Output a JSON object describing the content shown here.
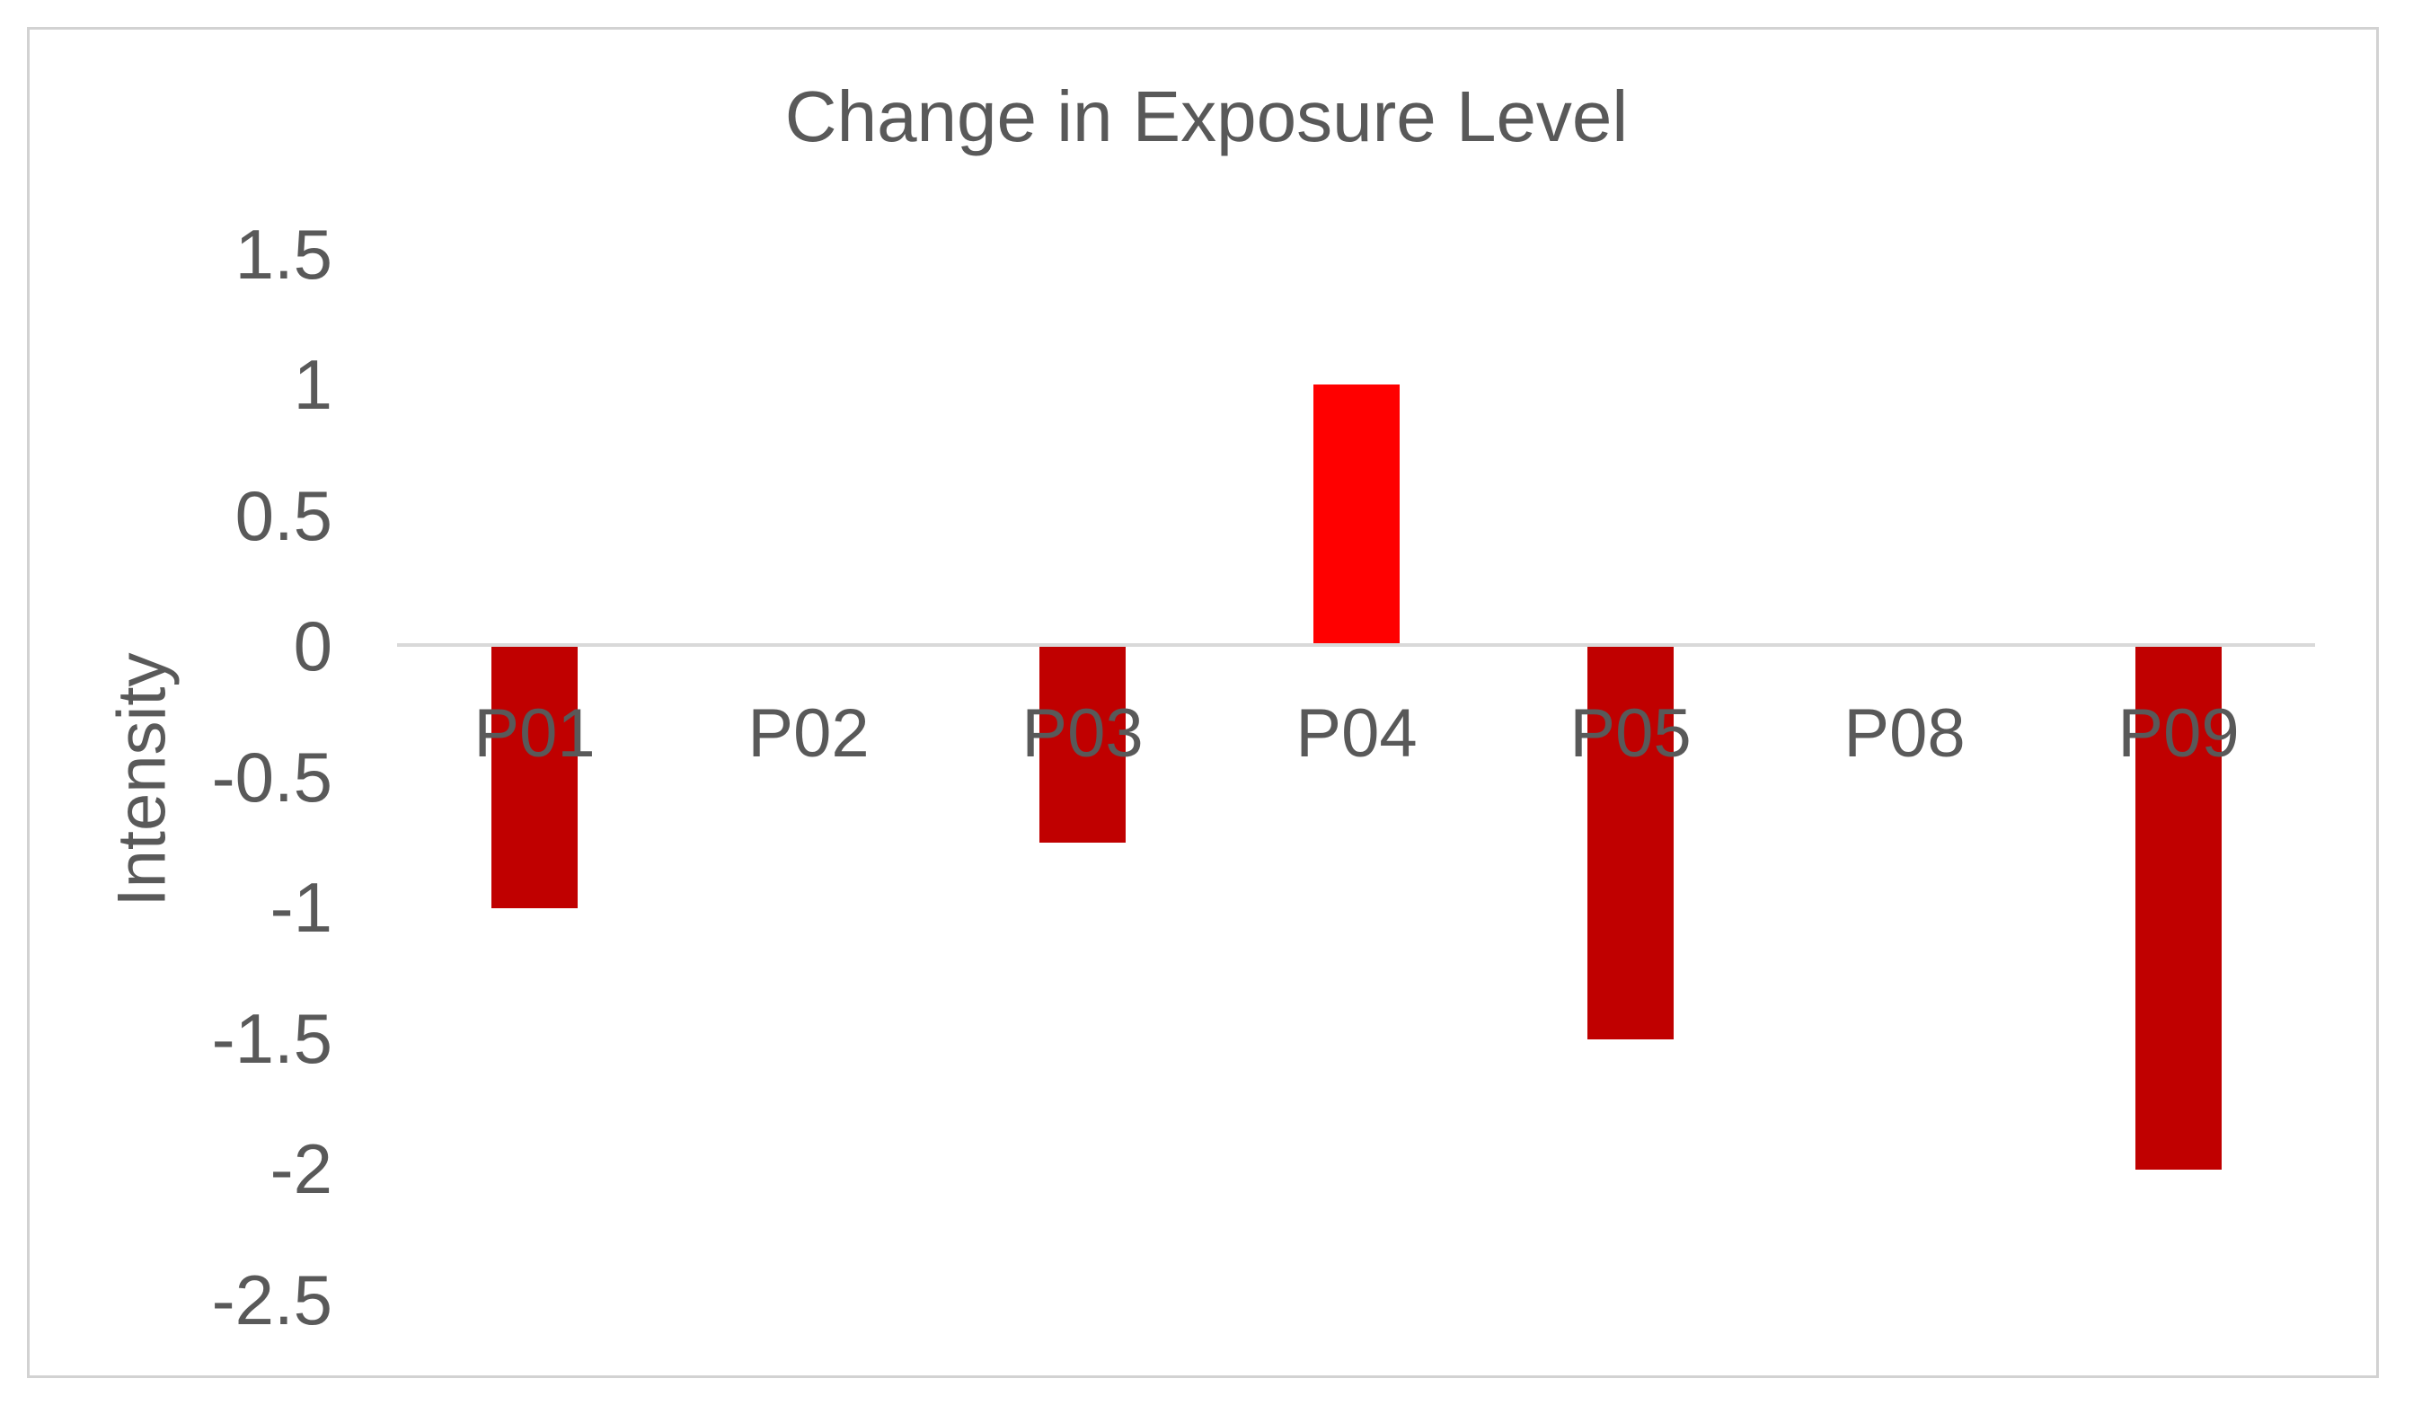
{
  "chart_data": {
    "type": "bar",
    "title": "Change in Exposure Level",
    "xlabel": "",
    "ylabel": "Intensity",
    "categories": [
      "P01",
      "P02",
      "P03",
      "P04",
      "P05",
      "P08",
      "P09"
    ],
    "values": [
      -1,
      0,
      -0.75,
      1,
      -1.5,
      0,
      -2
    ],
    "ylim": [
      -2.5,
      1.5
    ],
    "ytick_step": 0.5,
    "ytick_labels": [
      "1.5",
      "1",
      "0.5",
      "0",
      "-0.5",
      "-1",
      "-1.5",
      "-2",
      "-2.5"
    ],
    "grid": false,
    "legend_position": "none",
    "colors": {
      "bar_positive": "#ff0000",
      "bar_negative": "#c00000",
      "axis_line": "#d9d9d9",
      "text": "#595959",
      "frame_border": "#d2d2d2",
      "background": "#ffffff"
    }
  }
}
